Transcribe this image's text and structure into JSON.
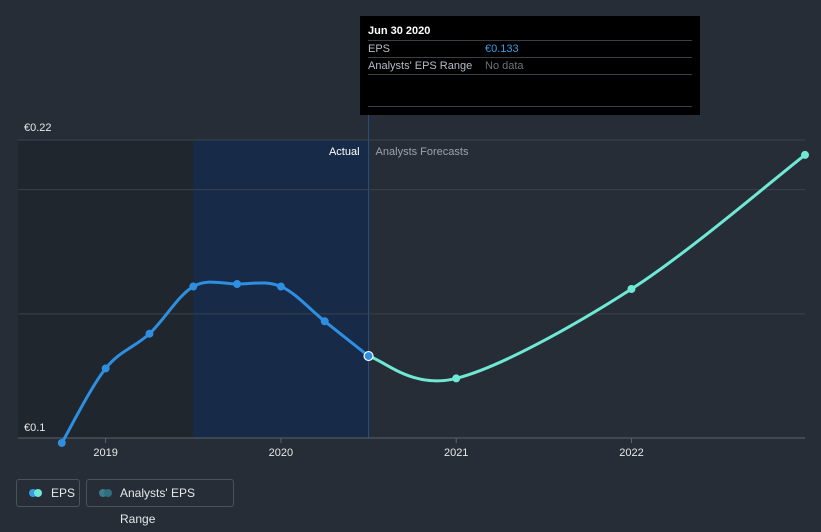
{
  "chart_data": {
    "type": "line",
    "title": "",
    "xlabel": "",
    "ylabel": "",
    "y_tick_labels": [
      "€0.1",
      "€0.22"
    ],
    "ylim": [
      0.1,
      0.22
    ],
    "x_tick_labels": [
      "2019",
      "2020",
      "2021",
      "2022"
    ],
    "x_tick_values": [
      2019,
      2020,
      2021,
      2022
    ],
    "xlim": [
      2018.5,
      2022.99
    ],
    "grid": true,
    "regions": {
      "past_end": 2019.5,
      "actual_end": 2020.5,
      "actual_label": "Actual",
      "forecast_label": "Analysts Forecasts"
    },
    "series": [
      {
        "name": "EPS",
        "role": "actual",
        "color": "#2e8fe0",
        "points": [
          {
            "x": 2018.75,
            "y": 0.098
          },
          {
            "x": 2019.0,
            "y": 0.128
          },
          {
            "x": 2019.25,
            "y": 0.142
          },
          {
            "x": 2019.5,
            "y": 0.161
          },
          {
            "x": 2019.75,
            "y": 0.162
          },
          {
            "x": 2020.0,
            "y": 0.161
          },
          {
            "x": 2020.25,
            "y": 0.147
          },
          {
            "x": 2020.5,
            "y": 0.133
          }
        ]
      },
      {
        "name": "EPS",
        "role": "forecast",
        "color": "#6fe8d4",
        "points": [
          {
            "x": 2020.5,
            "y": 0.133
          },
          {
            "x": 2021.0,
            "y": 0.124
          },
          {
            "x": 2022.0,
            "y": 0.16
          },
          {
            "x": 2022.99,
            "y": 0.214
          }
        ]
      }
    ]
  },
  "tooltip": {
    "title": "Jun 30 2020",
    "rows": [
      {
        "label": "EPS",
        "value": "€0.133"
      },
      {
        "label": "Analysts' EPS Range",
        "value": "No data"
      }
    ]
  },
  "legend": {
    "eps_label": "EPS",
    "range_label": "Analysts' EPS Range",
    "eps_color": "#3a9ae6",
    "range_color": "#3d7a8c"
  },
  "colors": {
    "background": "#262d37",
    "past_shade": "#20262e",
    "actual_shade": "#172a47",
    "grid": "#3a424d"
  }
}
